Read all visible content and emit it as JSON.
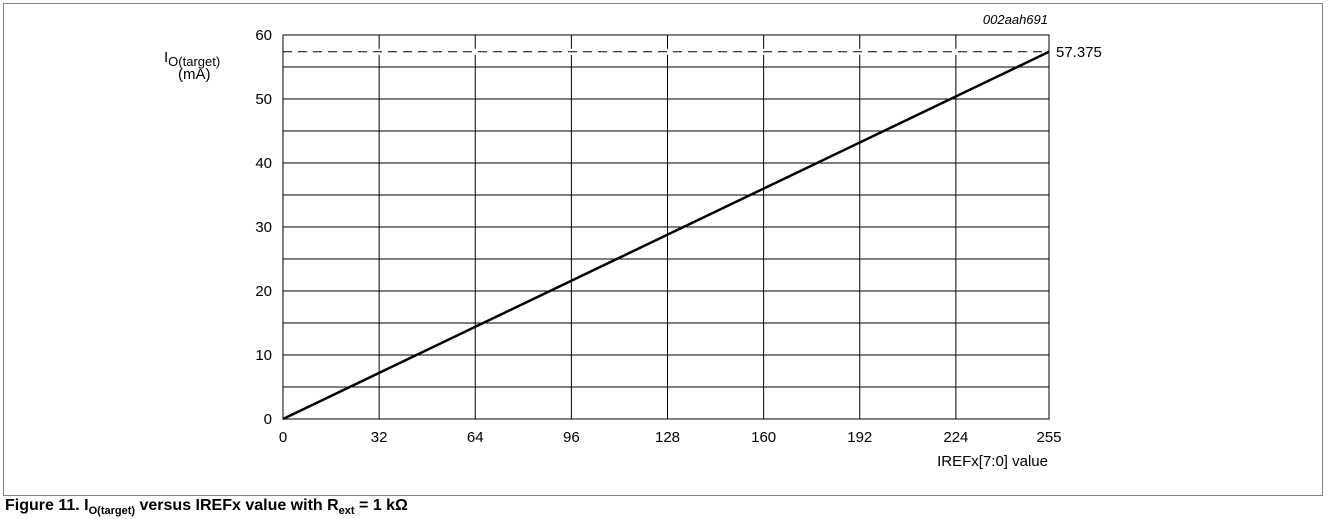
{
  "chart_data": {
    "type": "line",
    "figure_id": "002aah691",
    "x": [
      0,
      255
    ],
    "series": [
      {
        "values": [
          0,
          57.375
        ]
      }
    ],
    "reference_line": {
      "y": 57.375,
      "style": "dashed",
      "label": "57.375"
    },
    "xlim": [
      0,
      255
    ],
    "ylim": [
      0,
      60
    ],
    "x_ticks": [
      0,
      32,
      64,
      96,
      128,
      160,
      192,
      224,
      255
    ],
    "y_ticks": [
      0,
      10,
      20,
      30,
      40,
      50,
      60
    ],
    "y_minor_grid": [
      5,
      15,
      25,
      35,
      45,
      55
    ],
    "grid": true,
    "ylabel": {
      "main": "I",
      "sub": "O(target)",
      "unit": "(mA)"
    },
    "xlabel": "IREFx[7:0] value"
  },
  "caption": {
    "prefix": "Figure 11.  I",
    "sub1": "O(target)",
    "middle": " versus IREFx value with R",
    "sub2": "ext",
    "suffix": " = 1 kΩ"
  }
}
